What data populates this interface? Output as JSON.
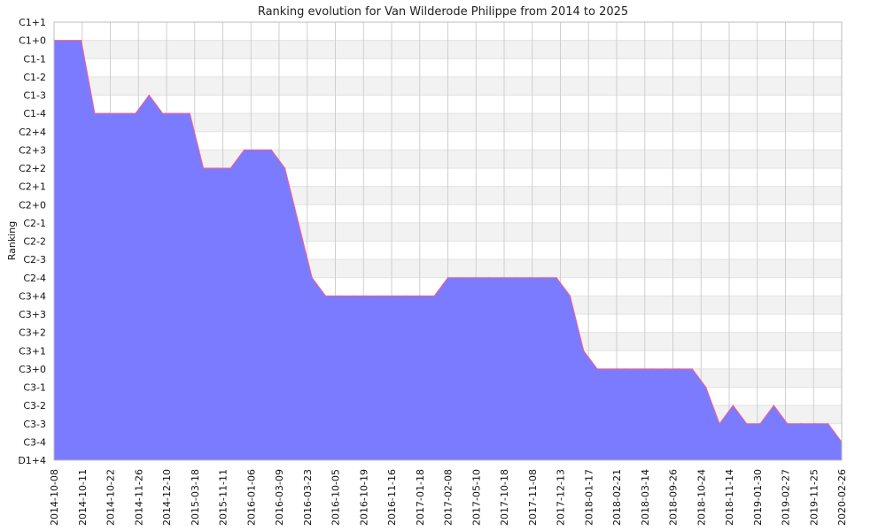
{
  "chart_data": {
    "type": "area",
    "title": "Ranking evolution for Van Wilderode Philippe from 2014 to 2025",
    "xlabel": "",
    "ylabel": "Ranking",
    "y_categories": [
      "D1+4",
      "C3-4",
      "C3-3",
      "C3-2",
      "C3-1",
      "C3+0",
      "C3+1",
      "C3+2",
      "C3+3",
      "C3+4",
      "C2-4",
      "C2-3",
      "C2-2",
      "C2-1",
      "C2+0",
      "C2+1",
      "C2+2",
      "C2+3",
      "C2+4",
      "C1-4",
      "C1-3",
      "C1-2",
      "C1-1",
      "C1+0",
      "C1+1"
    ],
    "x_tick_labels": [
      "2014-10-08",
      "2014-10-11",
      "2014-10-22",
      "2014-11-26",
      "2014-12-10",
      "2015-03-18",
      "2015-11-11",
      "2016-01-06",
      "2016-03-09",
      "2016-03-23",
      "2016-10-05",
      "2016-10-19",
      "2016-11-16",
      "2017-01-18",
      "2017-02-08",
      "2017-05-10",
      "2017-10-18",
      "2017-11-08",
      "2017-12-13",
      "2018-01-17",
      "2018-02-21",
      "2018-03-14",
      "2018-09-26",
      "2018-10-24",
      "2018-11-14",
      "2019-01-30",
      "2019-02-27",
      "2019-11-25",
      "2020-02-26"
    ],
    "series": [
      {
        "values": [
          "C1+0",
          "C1+0",
          "C1+0",
          "C1-4",
          "C1-4",
          "C1-4",
          "C1-4",
          "C1-3",
          "C1-4",
          "C1-4",
          "C1-4",
          "C2+2",
          "C2+2",
          "C2+2",
          "C2+3",
          "C2+3",
          "C2+3",
          "C2+2",
          "C2-1",
          "C2-4",
          "C3+4",
          "C3+4",
          "C3+4",
          "C3+4",
          "C3+4",
          "C3+4",
          "C3+4",
          "C3+4",
          "C3+4",
          "C2-4",
          "C2-4",
          "C2-4",
          "C2-4",
          "C2-4",
          "C2-4",
          "C2-4",
          "C2-4",
          "C2-4",
          "C3+4",
          "C3+1",
          "C3+0",
          "C3+0",
          "C3+0",
          "C3+0",
          "C3+0",
          "C3+0",
          "C3+0",
          "C3+0",
          "C3-1",
          "C3-3",
          "C3-2",
          "C3-3",
          "C3-3",
          "C3-2",
          "C3-3",
          "C3-3",
          "C3-3",
          "C3-3",
          "C3-4"
        ]
      }
    ],
    "colors": {
      "fill": "#7b7bff",
      "line": "#ff5c8a",
      "band": "#f2f2f2",
      "grid": "#cfcfcf"
    },
    "grid": true,
    "legend": "none"
  }
}
